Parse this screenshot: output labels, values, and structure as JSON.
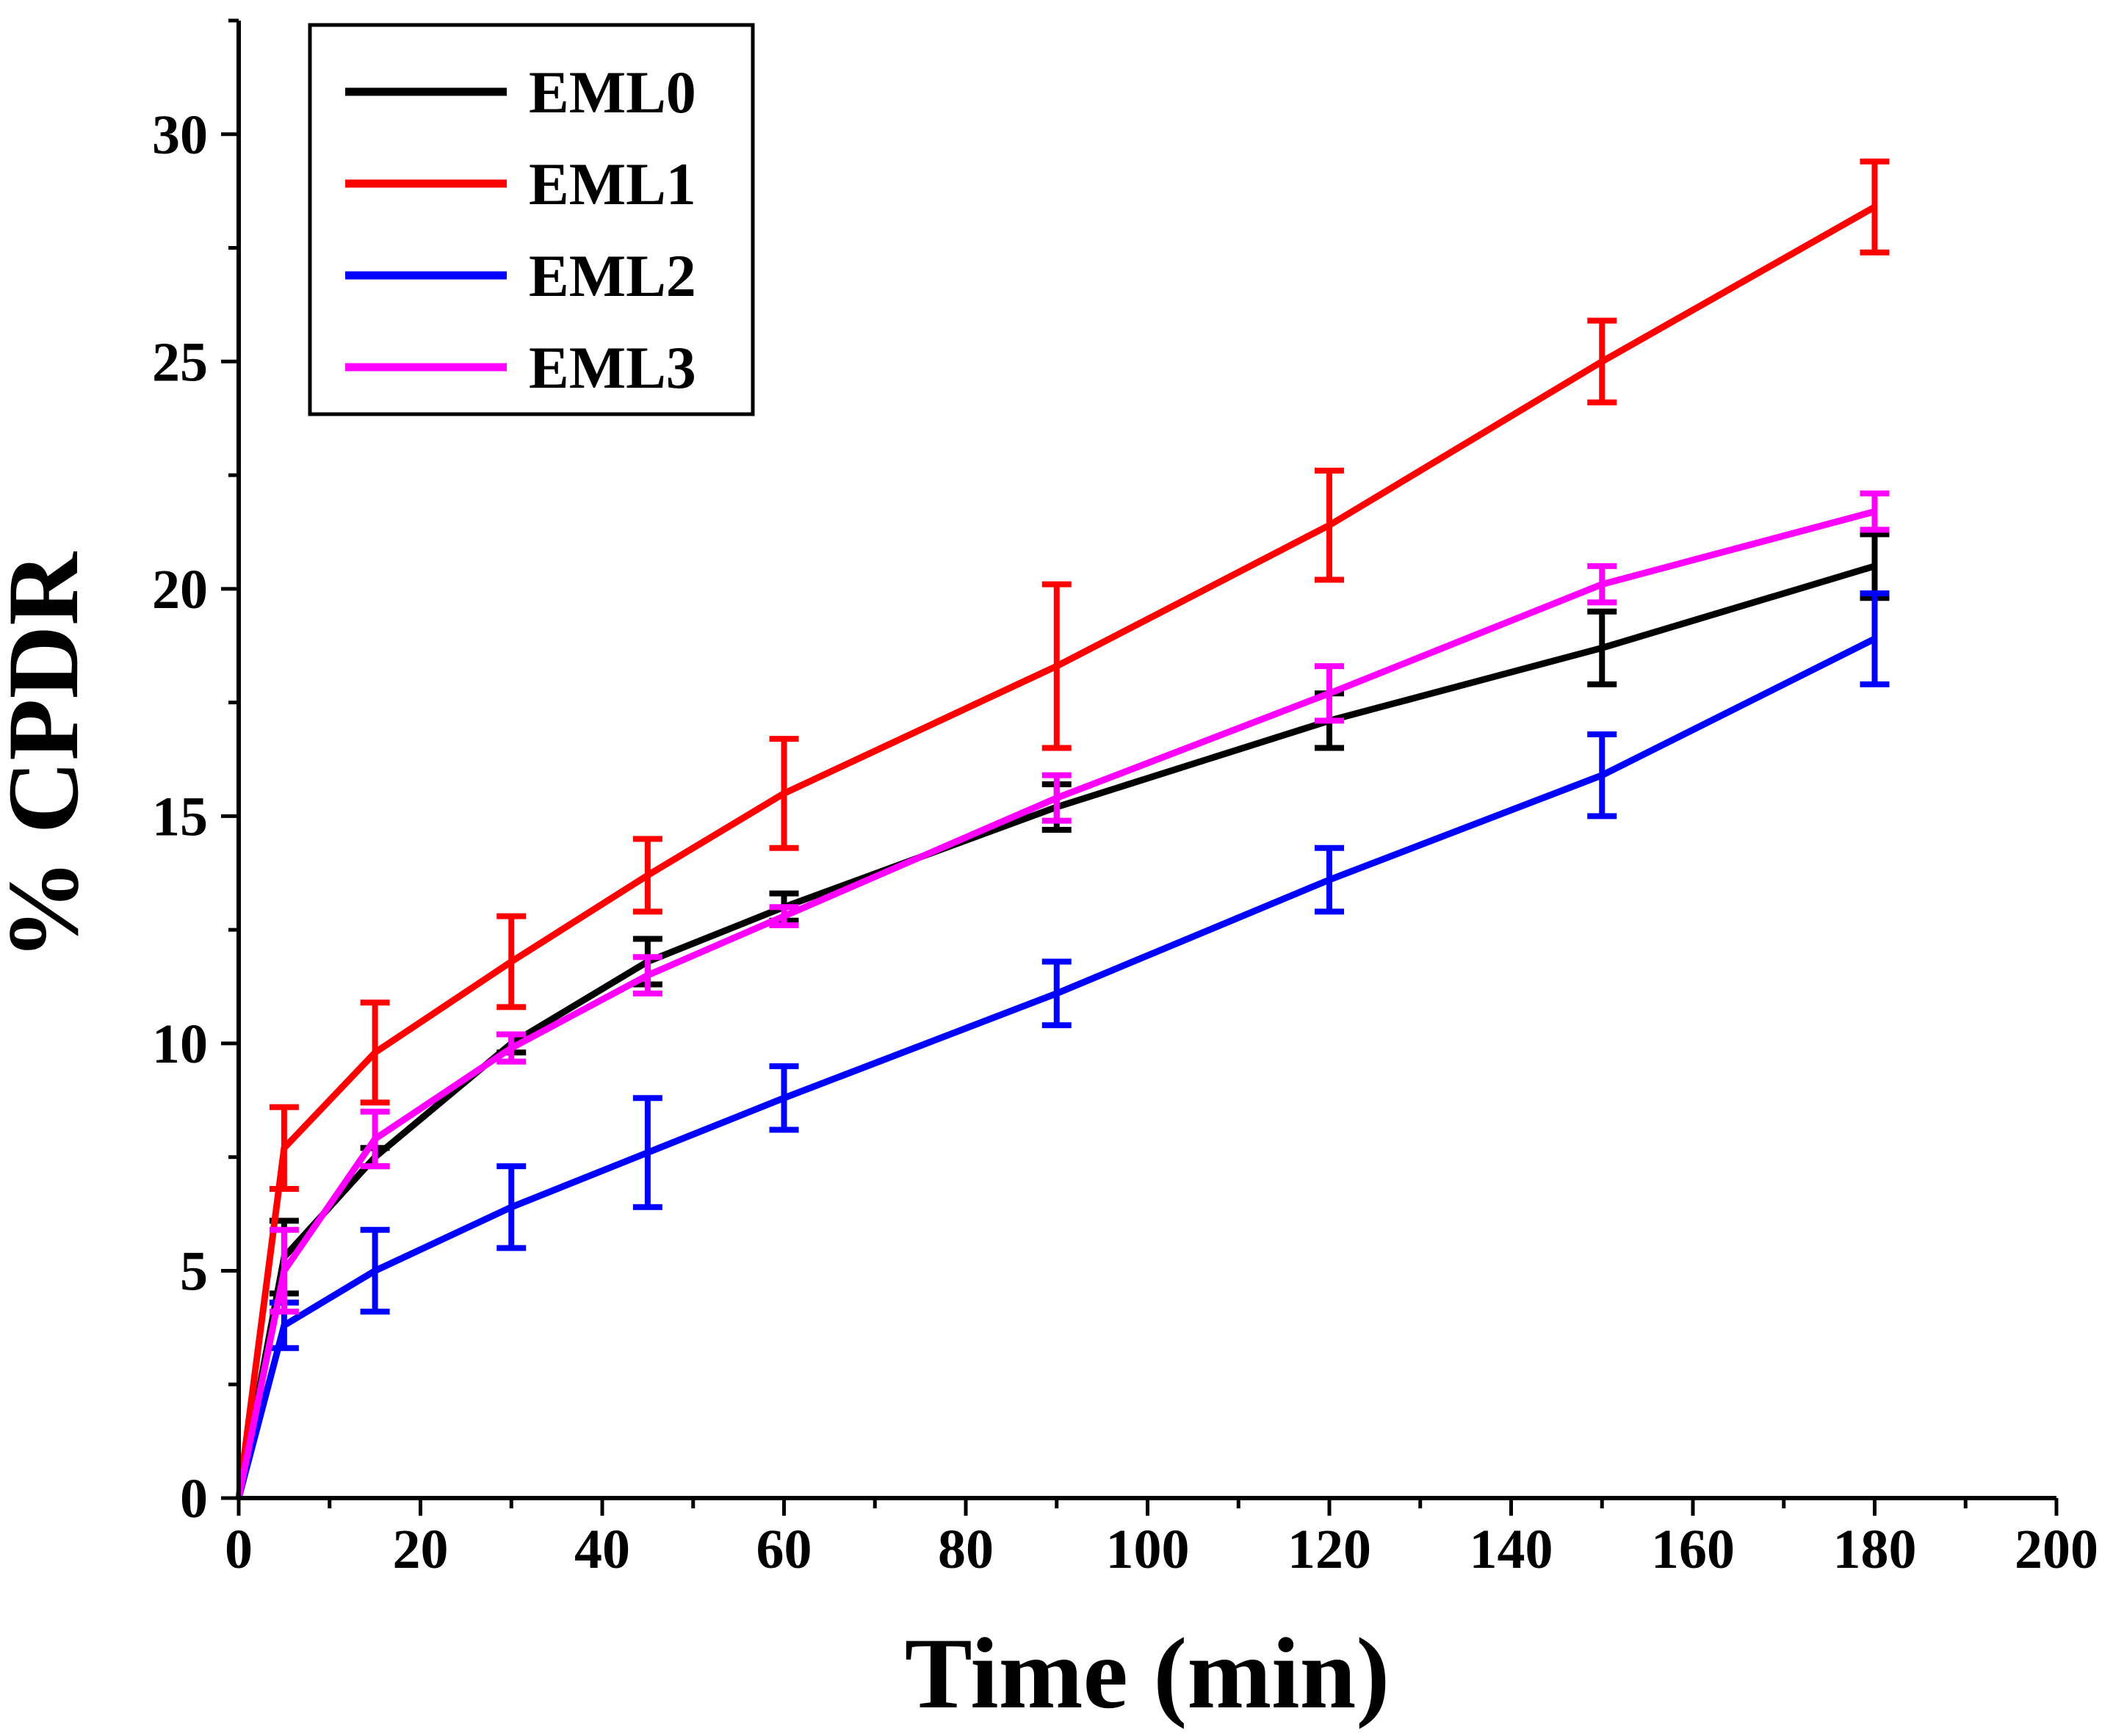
{
  "chart_data": {
    "type": "line",
    "xlabel": "Time (min)",
    "ylabel": "% CPDR",
    "xlim": [
      0,
      200
    ],
    "ylim": [
      0,
      32.5
    ],
    "xticks": [
      0,
      20,
      40,
      60,
      80,
      100,
      120,
      140,
      160,
      180,
      200
    ],
    "yticks": [
      0,
      5,
      10,
      15,
      20,
      25,
      30
    ],
    "grid": false,
    "legend_position": "top-left",
    "x": [
      0,
      5,
      15,
      30,
      45,
      60,
      90,
      120,
      150,
      180
    ],
    "series": [
      {
        "name": "EML0",
        "color": "#000000",
        "values": [
          0,
          5.3,
          7.5,
          10.0,
          11.8,
          13.0,
          15.2,
          17.1,
          18.7,
          20.5
        ],
        "errors": [
          0,
          0.8,
          0.2,
          0.2,
          0.5,
          0.3,
          0.5,
          0.6,
          0.8,
          0.7
        ]
      },
      {
        "name": "EML1",
        "color": "#ff0000",
        "values": [
          0,
          7.7,
          9.8,
          11.8,
          13.7,
          15.5,
          18.3,
          21.4,
          25.0,
          28.4
        ],
        "errors": [
          0,
          0.9,
          1.1,
          1.0,
          0.8,
          1.2,
          1.8,
          1.2,
          0.9,
          1.0
        ]
      },
      {
        "name": "EML2",
        "color": "#0000ff",
        "values": [
          0,
          3.8,
          5.0,
          6.4,
          7.6,
          8.8,
          11.1,
          13.6,
          15.9,
          18.9
        ],
        "errors": [
          0,
          0.5,
          0.9,
          0.9,
          1.2,
          0.7,
          0.7,
          0.7,
          0.9,
          1.0
        ]
      },
      {
        "name": "EML3",
        "color": "#ff00ff",
        "values": [
          0,
          5.0,
          7.9,
          9.9,
          11.5,
          12.8,
          15.4,
          17.7,
          20.1,
          21.7
        ],
        "errors": [
          0,
          0.9,
          0.6,
          0.3,
          0.4,
          0.2,
          0.5,
          0.6,
          0.4,
          0.4
        ]
      }
    ]
  }
}
